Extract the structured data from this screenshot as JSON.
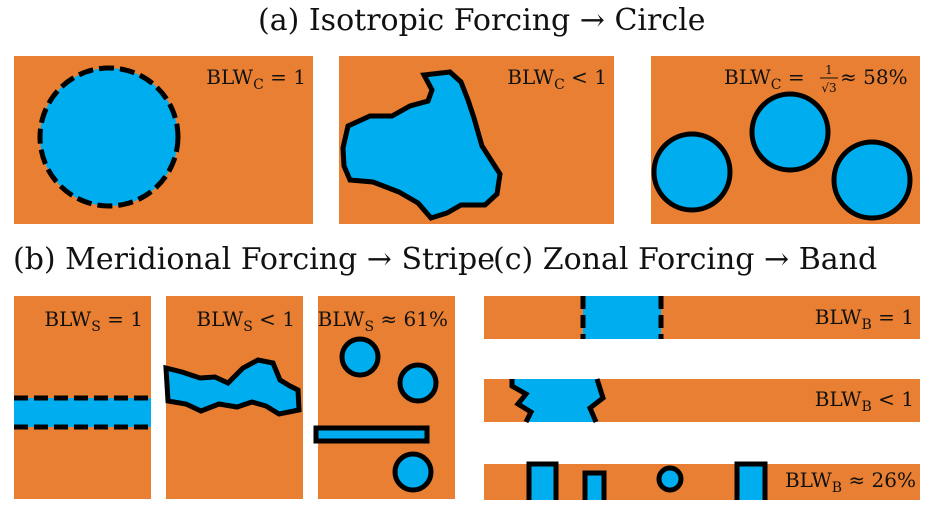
{
  "colors": {
    "background": "#E87F32",
    "region": "#00AEEF",
    "outline": "#000000"
  },
  "headings": {
    "a": "(a) Isotropic Forcing → Circle",
    "b": "(b) Meridional Forcing → Stripe",
    "c": "(c) Zonal Forcing → Band"
  },
  "labels": {
    "c1": {
      "base": "BLW",
      "sub": "C",
      "tail": " = 1"
    },
    "c2": {
      "base": "BLW",
      "sub": "C",
      "tail": " < 1"
    },
    "c3": {
      "base": "BLW",
      "sub": "C",
      "eq": " = ",
      "frac_num": "1",
      "frac_den": "√3",
      "tail": " ≈ 58%"
    },
    "s1": {
      "base": "BLW",
      "sub": "S",
      "tail": " = 1"
    },
    "s2": {
      "base": "BLW",
      "sub": "S",
      "tail": " < 1"
    },
    "s3": {
      "base": "BLW",
      "sub": "S",
      "tail": " ≈ 61%"
    },
    "b1": {
      "base": "BLW",
      "sub": "B",
      "tail": " = 1"
    },
    "b2": {
      "base": "BLW",
      "sub": "B",
      "tail": " < 1"
    },
    "b3": {
      "base": "BLW",
      "sub": "B",
      "tail": " ≈ 26%"
    }
  }
}
